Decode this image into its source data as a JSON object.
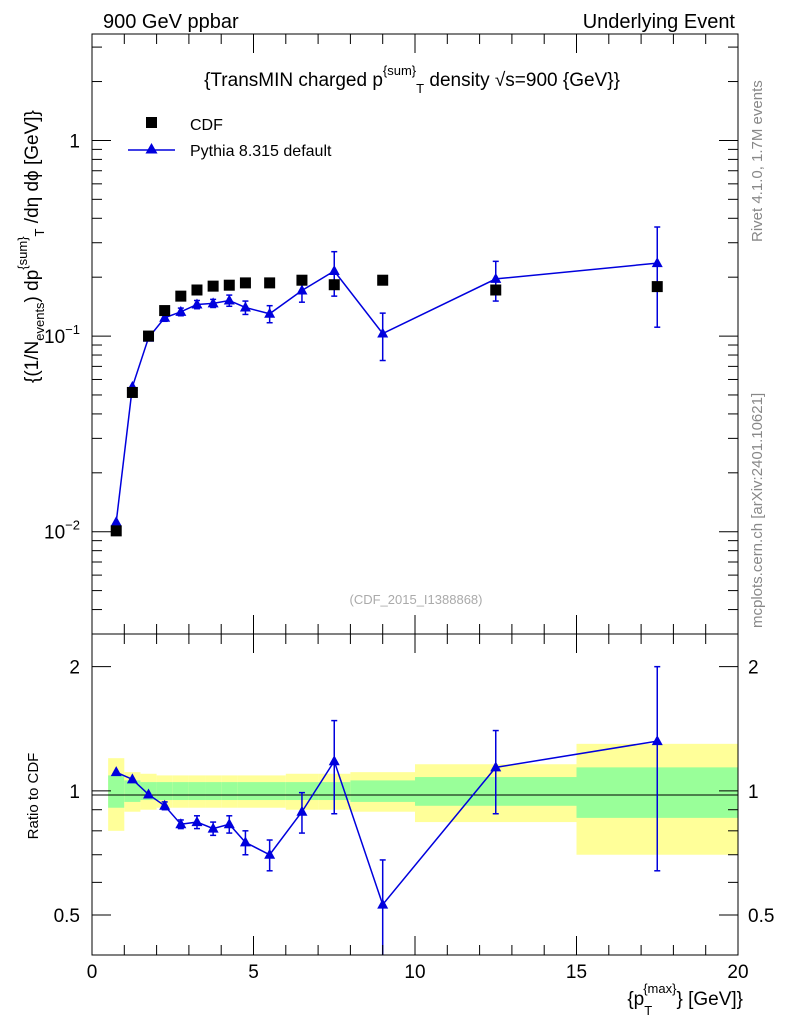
{
  "header": {
    "left": "900 GeV ppbar",
    "right": "Underlying Event"
  },
  "side": {
    "rivet": "Rivet 4.1.0,  1.7M events",
    "mcplots": "mcplots.cern.ch [arXiv:2401.10621]"
  },
  "colors": {
    "mc": "#0000dd",
    "data": "#000000",
    "band_inner": "#99ff99",
    "band_outer": "#ffff99"
  },
  "chart_data": [
    {
      "type": "scatter",
      "title": "{TransMIN charged p^{sum}_T density √s=900 {GeV}}",
      "title_parts": {
        "a": "{TransMIN charged p",
        "sup": "{sum}",
        "sub": "T",
        "b": " density √s=900 {GeV}}"
      },
      "watermark": "(CDF_2015_I1388868)",
      "ylabel": "{(1/N_{events}) dp^{sum}_T /dη  dϕ [GeV]}",
      "ylabel_parts": {
        "a": "{(1/N",
        "sub1": "events",
        "b": ") dp",
        "sup": "{sum}",
        "sub2": "T",
        "c": " /dη  dϕ [GeV]}"
      },
      "yscale": "log",
      "ylim": [
        0.003,
        3.5
      ],
      "xlim": [
        0,
        20
      ],
      "yticks": [
        {
          "v": 1,
          "base": "1",
          "exp": ""
        },
        {
          "v": 0.1,
          "base": "10",
          "exp": "−1"
        },
        {
          "v": 0.01,
          "base": "10",
          "exp": "−2"
        }
      ],
      "legend": [
        {
          "name": "CDF",
          "marker": "square"
        },
        {
          "name": "Pythia 8.315 default",
          "marker": "triangle"
        }
      ],
      "series": [
        {
          "name": "CDF",
          "x": [
            0.75,
            1.25,
            1.75,
            2.25,
            2.75,
            3.25,
            3.75,
            4.25,
            4.75,
            5.5,
            6.5,
            7.5,
            9.0,
            12.5,
            17.5
          ],
          "y": [
            0.0101,
            0.0515,
            0.1,
            0.135,
            0.16,
            0.172,
            0.18,
            0.182,
            0.187,
            0.187,
            0.193,
            0.183,
            0.193,
            0.172,
            0.179
          ]
        },
        {
          "name": "Pythia 8.315 default",
          "x": [
            0.75,
            1.25,
            1.75,
            2.25,
            2.75,
            3.25,
            3.75,
            4.25,
            4.75,
            5.5,
            6.5,
            7.5,
            9.0,
            12.5,
            17.5
          ],
          "y": [
            0.0112,
            0.055,
            0.098,
            0.124,
            0.133,
            0.145,
            0.147,
            0.152,
            0.14,
            0.13,
            0.171,
            0.215,
            0.103,
            0.196,
            0.236
          ],
          "yerr_lo": [
            0,
            0,
            0,
            0.005,
            0.006,
            0.007,
            0.007,
            0.01,
            0.011,
            0.013,
            0.022,
            0.055,
            0.028,
            0.045,
            0.125
          ],
          "yerr_hi": [
            0,
            0,
            0,
            0.005,
            0.006,
            0.007,
            0.007,
            0.01,
            0.011,
            0.013,
            0.022,
            0.055,
            0.028,
            0.045,
            0.125
          ]
        }
      ]
    },
    {
      "type": "line",
      "ylabel": "Ratio to CDF",
      "xlabel": "{p_{T}^{max}} [GeV]}",
      "xlabel_parts": {
        "a": "{p",
        "sub": "T",
        "sup": "{max}",
        "b": "} [GeV]}"
      },
      "yscale": "log",
      "ylim": [
        0.4,
        2.4
      ],
      "xlim": [
        0,
        20
      ],
      "xticks": [
        0,
        5,
        10,
        15,
        20
      ],
      "yticks": [
        0.5,
        1,
        2
      ],
      "bands": {
        "edges": [
          0.5,
          1.0,
          1.5,
          2.0,
          2.5,
          3.0,
          3.5,
          4.0,
          4.5,
          5.0,
          6.0,
          7.0,
          8.0,
          10.0,
          15.0,
          20.0
        ],
        "inner_lo": [
          0.91,
          0.94,
          0.95,
          0.95,
          0.95,
          0.95,
          0.95,
          0.95,
          0.95,
          0.95,
          0.95,
          0.95,
          0.94,
          0.92,
          0.86
        ],
        "inner_hi": [
          1.09,
          1.06,
          1.05,
          1.05,
          1.05,
          1.05,
          1.05,
          1.05,
          1.05,
          1.05,
          1.05,
          1.05,
          1.06,
          1.08,
          1.14
        ],
        "outer_lo": [
          0.8,
          0.89,
          0.9,
          0.91,
          0.91,
          0.91,
          0.91,
          0.91,
          0.91,
          0.91,
          0.9,
          0.9,
          0.89,
          0.84,
          0.7
        ],
        "outer_hi": [
          1.2,
          1.11,
          1.1,
          1.09,
          1.09,
          1.09,
          1.09,
          1.09,
          1.09,
          1.09,
          1.1,
          1.1,
          1.11,
          1.16,
          1.3
        ]
      },
      "series": [
        {
          "name": "Pythia 8.315 default / CDF",
          "x": [
            0.75,
            1.25,
            1.75,
            2.25,
            2.75,
            3.25,
            3.75,
            4.25,
            4.75,
            5.5,
            6.5,
            7.5,
            9.0,
            12.5,
            17.5
          ],
          "y": [
            1.11,
            1.066,
            0.98,
            0.92,
            0.83,
            0.84,
            0.81,
            0.83,
            0.75,
            0.7,
            0.89,
            1.18,
            0.53,
            1.14,
            1.32
          ],
          "yerr_lo": [
            0,
            0,
            0,
            0.02,
            0.02,
            0.03,
            0.03,
            0.04,
            0.05,
            0.06,
            0.1,
            0.3,
            0.15,
            0.26,
            0.68
          ],
          "yerr_hi": [
            0,
            0,
            0,
            0.02,
            0.02,
            0.03,
            0.03,
            0.04,
            0.05,
            0.06,
            0.1,
            0.3,
            0.15,
            0.26,
            0.68
          ]
        }
      ]
    }
  ]
}
